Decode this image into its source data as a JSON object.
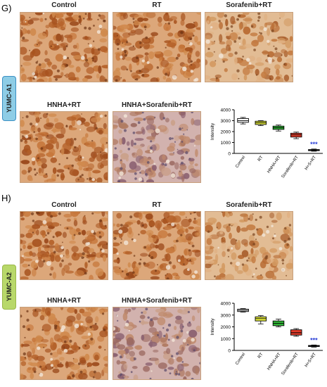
{
  "panels": [
    {
      "letter": "G)",
      "cell_line": "YUMC-A1",
      "cell_line_color": "#8ecde6",
      "images": [
        {
          "label": "Control",
          "stain": "heavy"
        },
        {
          "label": "RT",
          "stain": "heavy"
        },
        {
          "label": "Sorafenib+RT",
          "stain": "medium"
        },
        {
          "label": "HNHA+RT",
          "stain": "heavy"
        },
        {
          "label": "HNHA+Sorafenib+RT",
          "stain": "light"
        }
      ]
    },
    {
      "letter": "H)",
      "cell_line": "YUMC-A2",
      "cell_line_color": "#b8d86a",
      "images": [
        {
          "label": "Control",
          "stain": "heavy"
        },
        {
          "label": "RT",
          "stain": "heavy"
        },
        {
          "label": "Sorafenib+RT",
          "stain": "medium"
        },
        {
          "label": "HNHA+RT",
          "stain": "heavy"
        },
        {
          "label": "HNHA+Sorafenib+RT",
          "stain": "light"
        }
      ]
    }
  ],
  "chart_data": [
    {
      "type": "box",
      "ylabel": "Intensity",
      "ylim": [
        0,
        4000
      ],
      "yticks": [
        0,
        1000,
        2000,
        3000,
        4000
      ],
      "categories": [
        "Control",
        "RT",
        "HNHA+RT",
        "Sorafenib+RT",
        "H+S+RT"
      ],
      "colors": [
        "#ffffff",
        "#e8ef3c",
        "#2fb535",
        "#e23b2a",
        "#ffffff"
      ],
      "boxes": [
        {
          "min": 2700,
          "q1": 2850,
          "median": 3000,
          "q3": 3200,
          "max": 3300
        },
        {
          "min": 2550,
          "q1": 2650,
          "median": 2800,
          "q3": 2950,
          "max": 3000
        },
        {
          "min": 2050,
          "q1": 2200,
          "median": 2350,
          "q3": 2500,
          "max": 2600
        },
        {
          "min": 1350,
          "q1": 1500,
          "median": 1700,
          "q3": 1850,
          "max": 1950
        },
        {
          "min": 200,
          "q1": 250,
          "median": 300,
          "q3": 350,
          "max": 400
        }
      ],
      "significance": {
        "index": 4,
        "label": "***",
        "color": "#2a3fd6"
      }
    },
    {
      "type": "box",
      "ylabel": "Intensity",
      "ylim": [
        0,
        4000
      ],
      "yticks": [
        0,
        1000,
        2000,
        3000,
        4000
      ],
      "categories": [
        "Control",
        "RT",
        "HNHA+RT",
        "Sorafenib+RT",
        "H+S+RT"
      ],
      "colors": [
        "#ffffff",
        "#e8ef3c",
        "#2fb535",
        "#e23b2a",
        "#ffffff"
      ],
      "boxes": [
        {
          "min": 3250,
          "q1": 3300,
          "median": 3400,
          "q3": 3500,
          "max": 3550
        },
        {
          "min": 2250,
          "q1": 2500,
          "median": 2700,
          "q3": 2850,
          "max": 2950
        },
        {
          "min": 2000,
          "q1": 2100,
          "median": 2300,
          "q3": 2500,
          "max": 2650
        },
        {
          "min": 1200,
          "q1": 1300,
          "median": 1500,
          "q3": 1750,
          "max": 1850
        },
        {
          "min": 280,
          "q1": 330,
          "median": 380,
          "q3": 420,
          "max": 460
        }
      ],
      "significance": {
        "index": 4,
        "label": "***",
        "color": "#2a3fd6"
      }
    }
  ]
}
